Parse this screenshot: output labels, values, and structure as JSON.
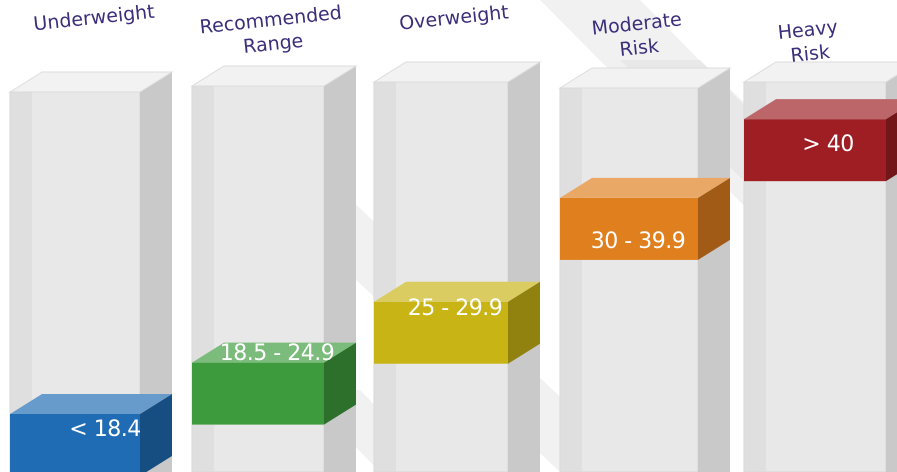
{
  "categories": [
    {
      "heading": [
        "Underweight"
      ],
      "range": "< 18.4",
      "color": "#1f6cb4",
      "level": 0.1
    },
    {
      "heading": [
        "Recommended",
        "Range"
      ],
      "range": "18.5 - 24.9",
      "color": "#3d9b3d",
      "level": 0.3
    },
    {
      "heading": [
        "Overweight"
      ],
      "range": "25 - 29.9",
      "color": "#c9b416",
      "level": 0.47
    },
    {
      "heading": [
        "Moderate",
        "Risk"
      ],
      "range": "30 - 39.9",
      "color": "#e07f1e",
      "level": 0.76
    },
    {
      "heading": [
        "Heavy",
        "Risk"
      ],
      "range": "> 40",
      "color": "#9e1e24",
      "level": 0.98
    }
  ]
}
